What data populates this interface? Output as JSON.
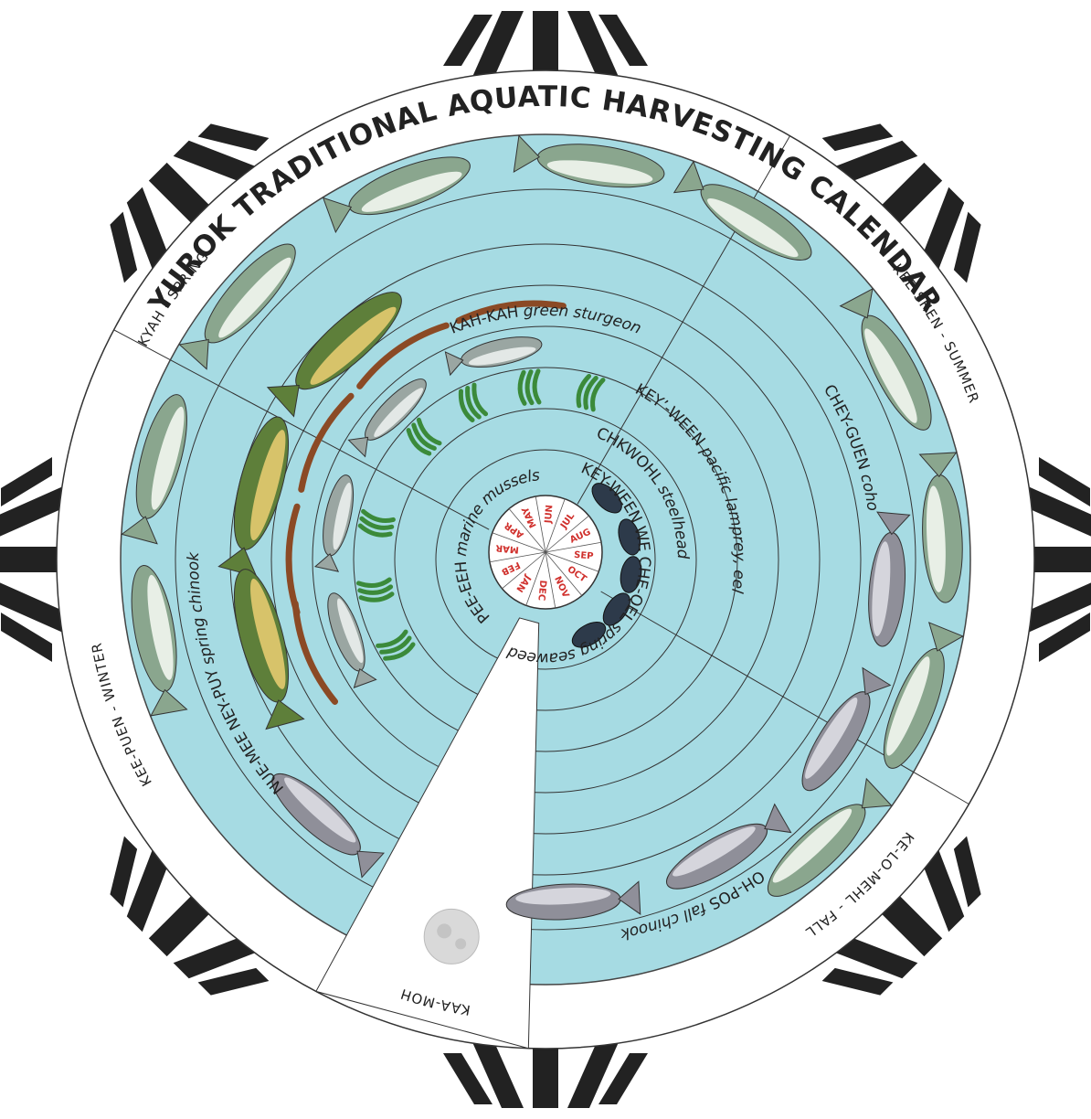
{
  "title": "YUROK TRADITIONAL AQUATIC HARVESTING CALENDAR",
  "seasons": [
    "KYAH - SPRING",
    "KEE-SHEN - SUMMER",
    "KE-LO-MEHL - FALL",
    "KEE-PUEN - WINTER"
  ],
  "moon_label": "KAA-MOH",
  "rings": [
    {
      "name": "NUE-MEE NEY-PUY",
      "common": "spring chinook"
    },
    {
      "name": "KAH-KAH",
      "common": "green sturgeon"
    },
    {
      "name": "KEY’-WEEN",
      "common": "pacific lamprey, eel"
    },
    {
      "name": "CHKWOHL",
      "common": "steelhead"
    },
    {
      "name": "KEY-WEEN WE CHE-QEL",
      "common": "spring seaweed"
    },
    {
      "name": "PEE-EEH",
      "common": "marine mussels"
    },
    {
      "name": "CHEY-GUEN",
      "common": "coho"
    },
    {
      "name": "OH-POS",
      "common": "fall chinook"
    }
  ],
  "months": [
    "JAN",
    "FEB",
    "MAR",
    "APR",
    "MAY",
    "JUN",
    "JUL",
    "AUG",
    "SEP",
    "OCT",
    "NOV",
    "DEC"
  ]
}
